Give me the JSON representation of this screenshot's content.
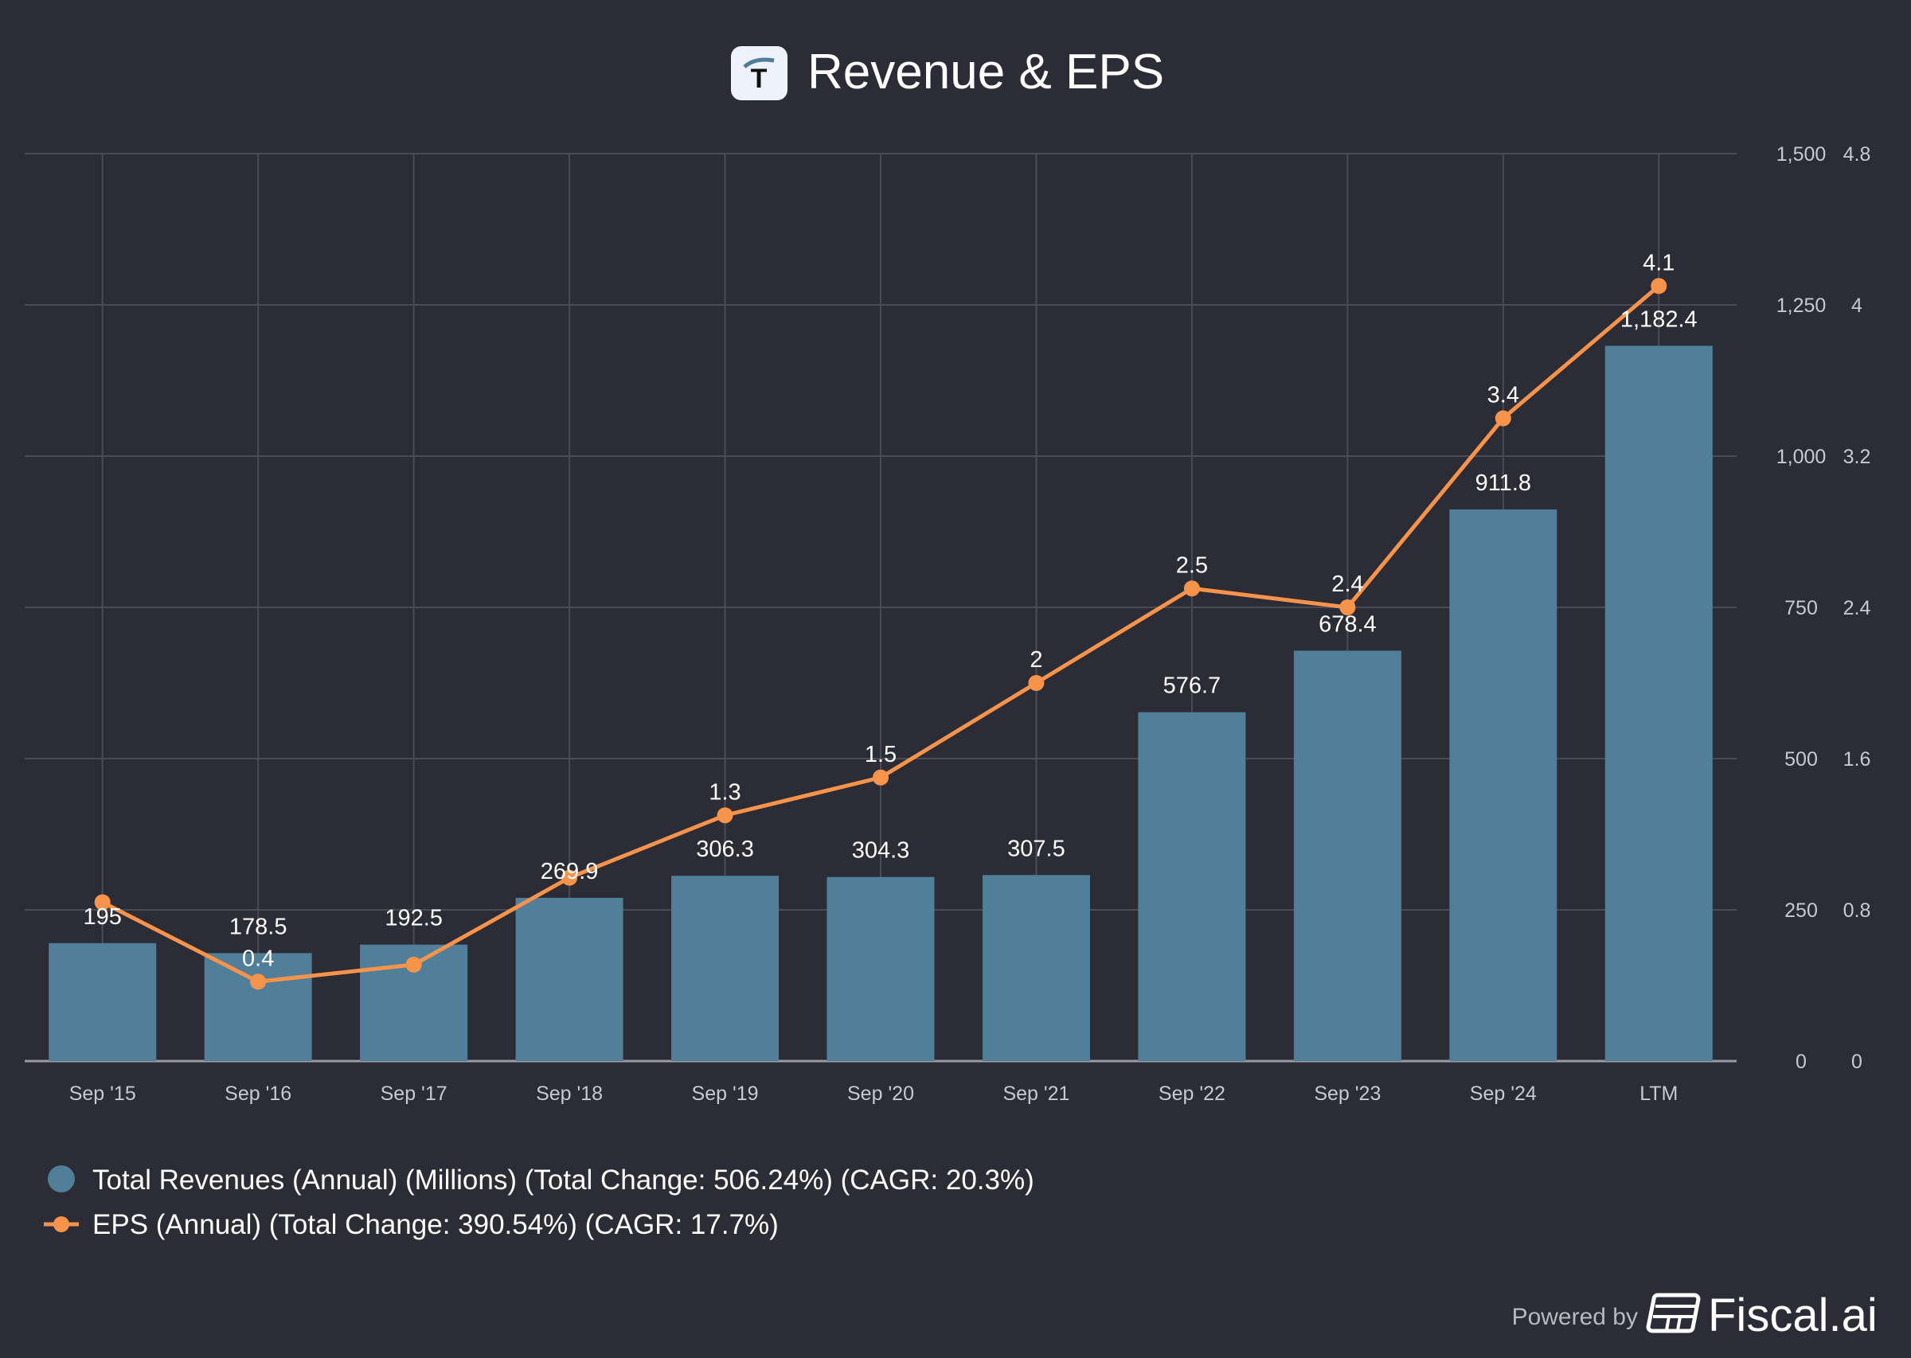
{
  "header": {
    "title": "Revenue & EPS",
    "logo_letter": "T"
  },
  "footer": {
    "powered_by": "Powered by",
    "brand": "Fiscal.ai"
  },
  "colors": {
    "background": "#2b2c35",
    "bar": "#517f9a",
    "line": "#f7934a",
    "grid": "#4a4b55",
    "text": "#ffffff",
    "tick": "#c8c9cf"
  },
  "chart_data": {
    "type": "bar+line",
    "title": "Revenue & EPS",
    "categories": [
      "Sep '15",
      "Sep '16",
      "Sep '17",
      "Sep '18",
      "Sep '19",
      "Sep '20",
      "Sep '21",
      "Sep '22",
      "Sep '23",
      "Sep '24",
      "LTM"
    ],
    "series": [
      {
        "name": "Total Revenues (Annual) (Millions) (Total Change: 506.24%) (CAGR: 20.3%)",
        "type": "bar",
        "axis": "revenue",
        "values": [
          195,
          178.5,
          192.5,
          269.9,
          306.3,
          304.3,
          307.5,
          576.7,
          678.4,
          911.8,
          1182.4
        ],
        "labels": [
          "195",
          "178.5",
          "192.5",
          "269.9",
          "306.3",
          "304.3",
          "307.5",
          "576.7",
          "678.4",
          "911.8",
          "1,182.4"
        ]
      },
      {
        "name": "EPS (Annual) (Total Change: 390.54%) (CAGR: 17.7%)",
        "type": "line",
        "axis": "eps",
        "values": [
          0.84,
          0.42,
          0.51,
          0.97,
          1.3,
          1.5,
          2.0,
          2.5,
          2.4,
          3.4,
          4.1
        ],
        "labels": [
          "",
          "0.4",
          "",
          "",
          "1.3",
          "1.5",
          "2",
          "2.5",
          "2.4",
          "3.4",
          "4.1"
        ]
      }
    ],
    "axes": {
      "revenue": {
        "range": [
          0,
          1500
        ],
        "ticks": [
          0,
          250,
          500,
          750,
          1000,
          1250,
          1500
        ],
        "tick_labels": [
          "0",
          "250",
          "500",
          "750",
          "1,000",
          "1,250",
          "1,500"
        ]
      },
      "eps": {
        "range": [
          0,
          4.8
        ],
        "ticks": [
          0,
          0.8,
          1.6,
          2.4,
          3.2,
          4,
          4.8
        ],
        "tick_labels": [
          "0",
          "0.8",
          "1.6",
          "2.4",
          "3.2",
          "4",
          "4.8"
        ]
      }
    },
    "grid": true,
    "legend_position": "bottom-left"
  }
}
